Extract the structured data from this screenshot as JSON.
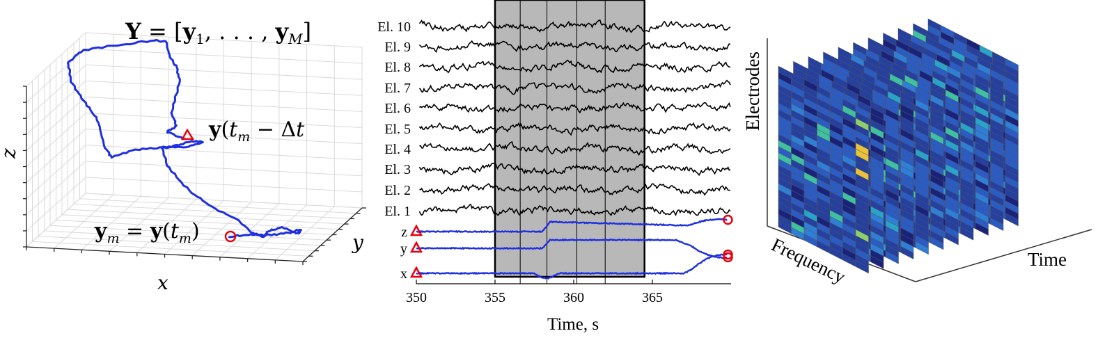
{
  "panel_a": {
    "title": "Y = [y1, . . . , yM]",
    "title_parts": [
      "Y",
      " = [",
      "y",
      "1",
      ", . . . , ",
      "y",
      "M",
      "]"
    ],
    "point_start": {
      "parts": [
        "y",
        "(",
        "t",
        "m",
        " − Δ",
        "t",
        ")"
      ]
    },
    "point_end": {
      "parts": [
        "y",
        "m",
        " = ",
        "y",
        "(",
        "t",
        "m",
        ")"
      ]
    },
    "axis_x": "x",
    "axis_y": "y",
    "axis_z": "z",
    "colors": {
      "trajectory": "#1f2fe0",
      "marker": "#e8000b",
      "grid": "#d9d9d9"
    }
  },
  "panel_b": {
    "electrode_labels": [
      "El. 10",
      "El. 9",
      "El. 8",
      "El. 7",
      "El. 6",
      "El. 5",
      "El. 4",
      "El. 3",
      "El. 2",
      "El. 1"
    ],
    "embedding_labels": [
      "z",
      "y",
      "x"
    ],
    "xlabel": "Time, s",
    "x_ticks": [
      "350",
      "355",
      "360",
      "365"
    ],
    "x_tick_values": [
      350,
      355,
      360,
      365
    ],
    "xlim": [
      350,
      370
    ],
    "window": {
      "start": 355.0,
      "end": 364.5,
      "dividers": [
        356.6,
        358.3,
        360.2,
        362.0
      ]
    },
    "colors": {
      "eeg": "#000000",
      "embedding": "#1f2fe0",
      "shade": "#b8b8b8",
      "marker": "#e8000b"
    }
  },
  "panel_c": {
    "axis_electrodes": "Electrodes",
    "axis_frequency": "Frequency",
    "axis_time": "Time",
    "colormap": [
      "#1a237a",
      "#25409e",
      "#2b5cc4",
      "#2f7fd6",
      "#2aa3c8",
      "#3fc0a0",
      "#8fcf6a",
      "#e7c23a"
    ]
  }
}
